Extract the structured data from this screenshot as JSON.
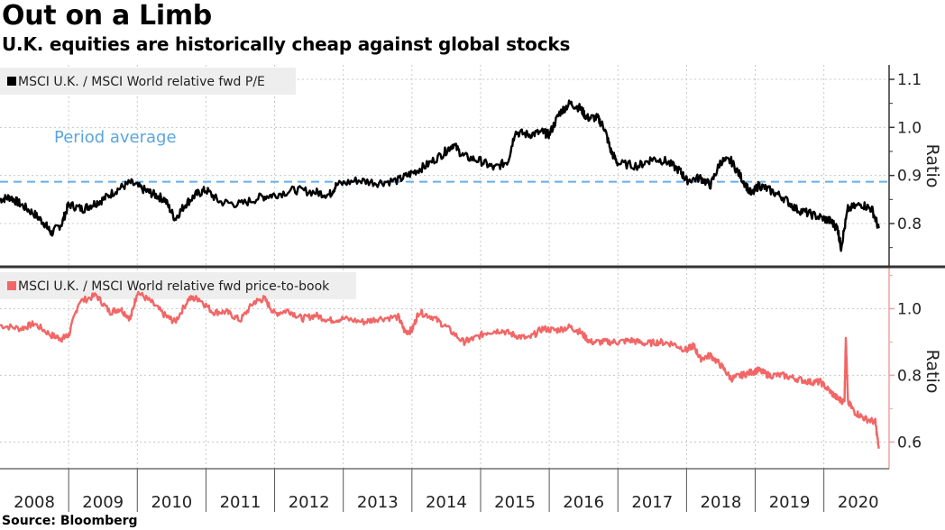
{
  "header": {
    "title": "Out on a Limb",
    "subtitle": "U.K. equities are historically cheap against global stocks"
  },
  "footer": {
    "source": "Source: Bloomberg"
  },
  "colors": {
    "pe_line": "#000000",
    "pb_line": "#f26666",
    "average_line": "#66aee8",
    "grid": "#c8c8c8",
    "legend_bg": "#eeeeee"
  },
  "chart_data": [
    {
      "type": "line",
      "panel": "top",
      "title": "MSCI U.K. / MSCI World relative fwd P/E",
      "legend": [
        "MSCI U.K. / MSCI World relative fwd P/E"
      ],
      "legend_placement": "top-left",
      "xlabel": "",
      "ylabel": "Ratio",
      "ylim": [
        0.71,
        1.13
      ],
      "xlim": [
        2008.0,
        2020.95
      ],
      "yticks": [
        0.8,
        0.9,
        1.0,
        1.1
      ],
      "ytick_labels": [
        "0.8",
        "0.9",
        "1.0",
        "1.1"
      ],
      "grid": true,
      "annotations": [
        {
          "text": "Period average",
          "y": 0.887,
          "style": "dashed horizontal line"
        }
      ],
      "series": [
        {
          "name": "MSCI U.K. / MSCI World relative fwd P/E",
          "x": [
            2008.0,
            2008.15,
            2008.3,
            2008.5,
            2008.65,
            2008.75,
            2008.9,
            2009.0,
            2009.2,
            2009.35,
            2009.5,
            2009.7,
            2009.9,
            2010.1,
            2010.25,
            2010.4,
            2010.55,
            2010.7,
            2010.85,
            2011.0,
            2011.2,
            2011.5,
            2011.8,
            2012.0,
            2012.3,
            2012.6,
            2012.8,
            2012.9,
            2013.2,
            2013.5,
            2013.8,
            2014.0,
            2014.2,
            2014.45,
            2014.6,
            2014.75,
            2015.0,
            2015.2,
            2015.4,
            2015.5,
            2015.7,
            2015.9,
            2016.0,
            2016.15,
            2016.3,
            2016.45,
            2016.55,
            2016.7,
            2016.8,
            2016.9,
            2017.0,
            2017.3,
            2017.5,
            2017.7,
            2017.9,
            2018.0,
            2018.2,
            2018.35,
            2018.5,
            2018.65,
            2018.8,
            2018.95,
            2019.05,
            2019.2,
            2019.4,
            2019.6,
            2019.8,
            2020.0,
            2020.1,
            2020.2,
            2020.25,
            2020.35,
            2020.55,
            2020.7,
            2020.8
          ],
          "values": [
            0.85,
            0.855,
            0.84,
            0.82,
            0.8,
            0.78,
            0.8,
            0.84,
            0.83,
            0.84,
            0.85,
            0.87,
            0.885,
            0.87,
            0.86,
            0.85,
            0.81,
            0.84,
            0.86,
            0.87,
            0.845,
            0.84,
            0.855,
            0.86,
            0.87,
            0.865,
            0.86,
            0.88,
            0.89,
            0.885,
            0.89,
            0.905,
            0.92,
            0.945,
            0.965,
            0.94,
            0.93,
            0.915,
            0.93,
            0.99,
            0.985,
            0.99,
            0.985,
            1.03,
            1.05,
            1.04,
            1.02,
            1.02,
            1.0,
            0.95,
            0.925,
            0.92,
            0.935,
            0.93,
            0.91,
            0.89,
            0.895,
            0.88,
            0.93,
            0.93,
            0.895,
            0.86,
            0.88,
            0.87,
            0.855,
            0.83,
            0.82,
            0.81,
            0.805,
            0.79,
            0.75,
            0.83,
            0.84,
            0.83,
            0.79
          ]
        }
      ],
      "period_average": 0.887
    },
    {
      "type": "line",
      "panel": "bottom",
      "title": "MSCI U.K. / MSCI World relative fwd price-to-book",
      "legend": [
        "MSCI U.K. / MSCI World relative fwd price-to-book"
      ],
      "legend_placement": "top-left",
      "xlabel": "",
      "ylabel": "Ratio",
      "ylim": [
        0.52,
        1.12
      ],
      "xlim": [
        2008.0,
        2020.95
      ],
      "yticks": [
        0.6,
        0.8,
        1.0
      ],
      "ytick_labels": [
        "0.6",
        "0.8",
        "1.0"
      ],
      "xtick_labels": [
        "2008",
        "2009",
        "2010",
        "2011",
        "2012",
        "2013",
        "2014",
        "2015",
        "2016",
        "2017",
        "2018",
        "2019",
        "2020"
      ],
      "grid": true,
      "series": [
        {
          "name": "MSCI U.K. / MSCI World relative fwd price-to-book",
          "x": [
            2008.0,
            2008.3,
            2008.5,
            2008.75,
            2008.9,
            2009.0,
            2009.15,
            2009.4,
            2009.6,
            2009.75,
            2009.9,
            2010.0,
            2010.2,
            2010.4,
            2010.55,
            2010.75,
            2010.9,
            2011.1,
            2011.3,
            2011.5,
            2011.7,
            2011.85,
            2012.0,
            2012.2,
            2012.4,
            2012.6,
            2012.8,
            2013.0,
            2013.3,
            2013.5,
            2013.8,
            2013.9,
            2014.0,
            2014.1,
            2014.3,
            2014.5,
            2014.75,
            2014.9,
            2015.1,
            2015.3,
            2015.5,
            2015.7,
            2015.9,
            2016.1,
            2016.3,
            2016.45,
            2016.6,
            2016.8,
            2017.0,
            2017.2,
            2017.4,
            2017.6,
            2017.8,
            2018.0,
            2018.1,
            2018.2,
            2018.35,
            2018.5,
            2018.65,
            2018.8,
            2018.95,
            2019.05,
            2019.2,
            2019.4,
            2019.6,
            2019.8,
            2019.95,
            2020.1,
            2020.2,
            2020.3,
            2020.32,
            2020.35,
            2020.45,
            2020.6,
            2020.75,
            2020.8
          ],
          "values": [
            0.95,
            0.94,
            0.955,
            0.92,
            0.91,
            0.92,
            1.02,
            1.04,
            0.99,
            1.0,
            0.97,
            1.05,
            1.02,
            0.98,
            0.96,
            1.03,
            1.03,
            0.99,
            0.99,
            0.965,
            1.02,
            1.03,
            0.985,
            0.995,
            0.97,
            0.98,
            0.965,
            0.97,
            0.96,
            0.97,
            0.975,
            0.93,
            0.935,
            0.99,
            0.975,
            0.945,
            0.9,
            0.91,
            0.93,
            0.935,
            0.92,
            0.91,
            0.94,
            0.935,
            0.945,
            0.93,
            0.9,
            0.9,
            0.9,
            0.905,
            0.895,
            0.9,
            0.895,
            0.875,
            0.89,
            0.85,
            0.86,
            0.83,
            0.79,
            0.8,
            0.81,
            0.815,
            0.8,
            0.8,
            0.79,
            0.78,
            0.78,
            0.75,
            0.73,
            0.72,
            0.92,
            0.72,
            0.69,
            0.67,
            0.66,
            0.58
          ]
        }
      ]
    }
  ]
}
